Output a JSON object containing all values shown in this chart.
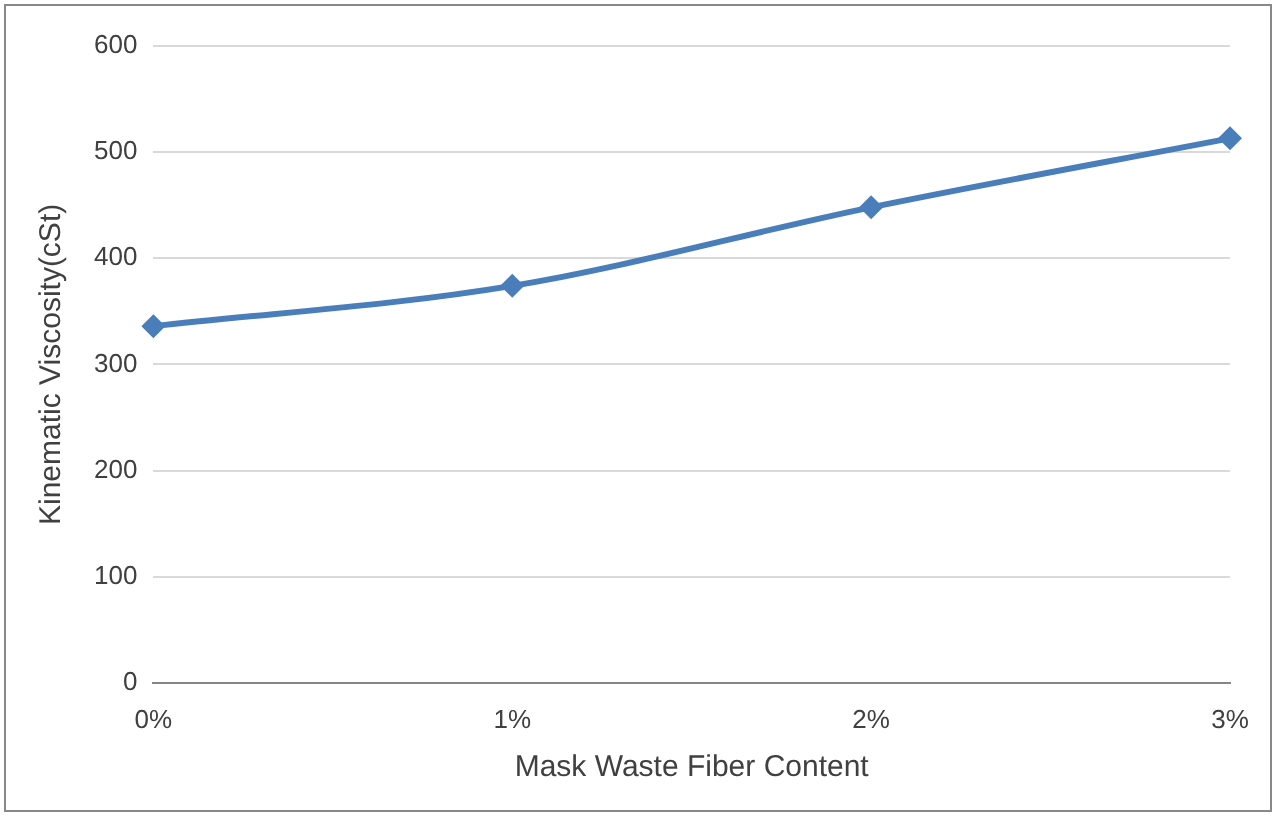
{
  "chart_data": {
    "type": "line",
    "xlabel": "Mask Waste Fiber Content",
    "ylabel": "Kinematic Viscosity(cSt)",
    "categories": [
      "0%",
      "1%",
      "2%",
      "3%"
    ],
    "series": [
      {
        "color": "#4a7ebb",
        "values": [
          336,
          374,
          448,
          513
        ]
      }
    ],
    "ylim": [
      0,
      600
    ],
    "yticks": [
      0,
      100,
      200,
      300,
      400,
      500,
      600
    ],
    "grid": "y",
    "legend": false,
    "marker": "diamond",
    "line_style": "solid"
  }
}
